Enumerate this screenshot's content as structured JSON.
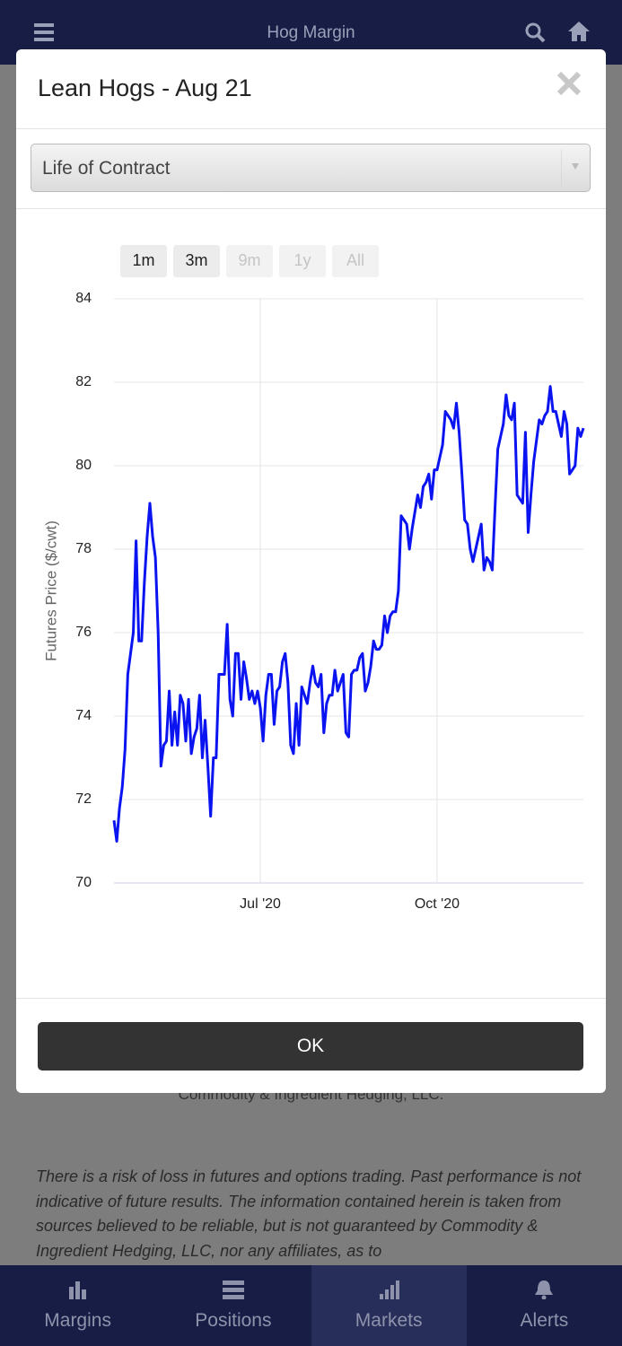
{
  "header": {
    "title": "Hog Margin"
  },
  "modal": {
    "title": "Lean Hogs - Aug 21",
    "select": "Life of Contract",
    "ranges": [
      "1m",
      "3m",
      "9m",
      "1y",
      "All"
    ],
    "ok": "OK"
  },
  "chart_data": {
    "type": "line",
    "ylabel": "Futures Price ($/cwt)",
    "color": "#0a14f0",
    "grid": true,
    "values": [
      71.5,
      71.0,
      71.8,
      72.3,
      73.2,
      75.0,
      75.5,
      76.0,
      78.2,
      75.8,
      75.8,
      77.2,
      78.3,
      79.1,
      78.3,
      77.8,
      76.0,
      72.8,
      73.3,
      73.4,
      74.6,
      73.3,
      74.1,
      73.3,
      74.5,
      74.3,
      73.4,
      74.4,
      73.1,
      73.5,
      73.7,
      74.5,
      73.0,
      73.9,
      72.8,
      71.6,
      73.0,
      73.0,
      75.0,
      75.0,
      75.0,
      76.2,
      74.4,
      74.0,
      75.5,
      75.5,
      74.4,
      75.3,
      74.9,
      74.4,
      74.6,
      74.3,
      74.6,
      74.2,
      73.4,
      74.5,
      75.0,
      75.0,
      73.8,
      74.6,
      74.7,
      75.3,
      75.5,
      74.8,
      73.3,
      73.1,
      74.3,
      73.3,
      74.7,
      74.5,
      74.3,
      74.8,
      75.2,
      74.8,
      74.7,
      75.0,
      73.6,
      74.3,
      74.5,
      74.5,
      75.1,
      74.6,
      74.8,
      75.0,
      73.6,
      73.5,
      75.0,
      75.1,
      75.1,
      75.4,
      75.5,
      74.6,
      74.8,
      75.2,
      75.8,
      75.6,
      75.6,
      75.7,
      76.4,
      76.0,
      76.4,
      76.5,
      76.5,
      77.0,
      78.8,
      78.7,
      78.6,
      78.0,
      78.5,
      78.9,
      79.3,
      79.0,
      79.5,
      79.6,
      79.8,
      79.2,
      79.9,
      79.9,
      80.2,
      80.5,
      81.3,
      81.2,
      81.1,
      80.9,
      81.5,
      80.8,
      79.8,
      78.7,
      78.6,
      78.0,
      77.7,
      78.0,
      78.3,
      78.6,
      77.5,
      77.8,
      77.7,
      77.5,
      79.0,
      80.4,
      80.7,
      81.0,
      81.7,
      81.2,
      81.1,
      81.5,
      79.3,
      79.2,
      79.1,
      80.8,
      78.4,
      79.3,
      80.1,
      80.6,
      81.1,
      81.0,
      81.2,
      81.3,
      81.9,
      81.3,
      81.3,
      81.0,
      80.7,
      81.3,
      81.0,
      79.8,
      79.9,
      80.0,
      80.9,
      80.7,
      80.9
    ],
    "xlim": [
      0,
      170
    ],
    "xticks": [
      {
        "value": 53,
        "label": "Jul '20"
      },
      {
        "value": 117,
        "label": "Oct '20"
      }
    ],
    "ylim": [
      70,
      84
    ],
    "yticks": [
      70,
      72,
      74,
      76,
      78,
      80,
      82,
      84
    ]
  },
  "background": {
    "company": "Commodity & Ingredient Hedging, LLC.",
    "disclaimer": "There is a risk of loss in futures and options trading. Past performance is not indicative of future results. The information contained herein is taken from sources believed to be reliable, but is not guaranteed by Commodity & Ingredient Hedging, LLC, nor any affiliates, as to"
  },
  "nav": [
    "Margins",
    "Positions",
    "Markets",
    "Alerts"
  ]
}
